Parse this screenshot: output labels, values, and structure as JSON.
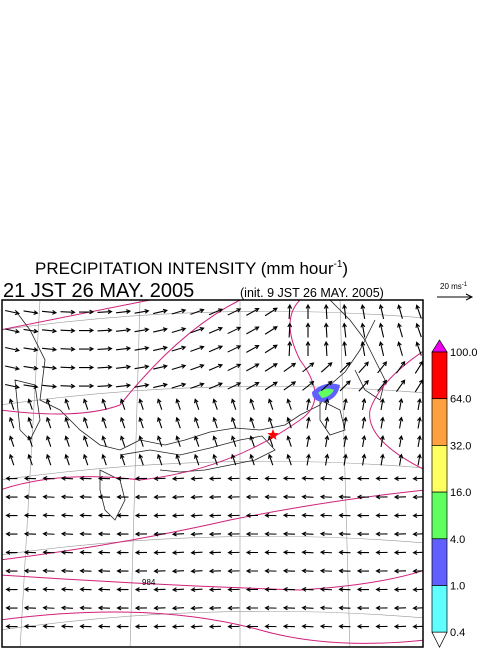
{
  "header": {
    "title": "PRECIPITATION INTENSITY (mm hour",
    "title_exponent": "-1",
    "title_close": ")",
    "time": "21 JST 26 MAY. 2005",
    "init": "(init. 9 JST 26 MAY. 2005)"
  },
  "wind_scale": {
    "label": "20 ms",
    "exponent": "-1"
  },
  "map": {
    "isobar_label": "984"
  },
  "colorbar": {
    "labels": [
      "100.0",
      "64.0",
      "32.0",
      "16.0",
      "4.0",
      "1.0",
      "0.4"
    ],
    "colors": [
      "#ee00ee",
      "#ff0000",
      "#ffa040",
      "#ffff60",
      "#60ff60",
      "#6060ff",
      "#60ffff",
      "#ffffff"
    ]
  }
}
